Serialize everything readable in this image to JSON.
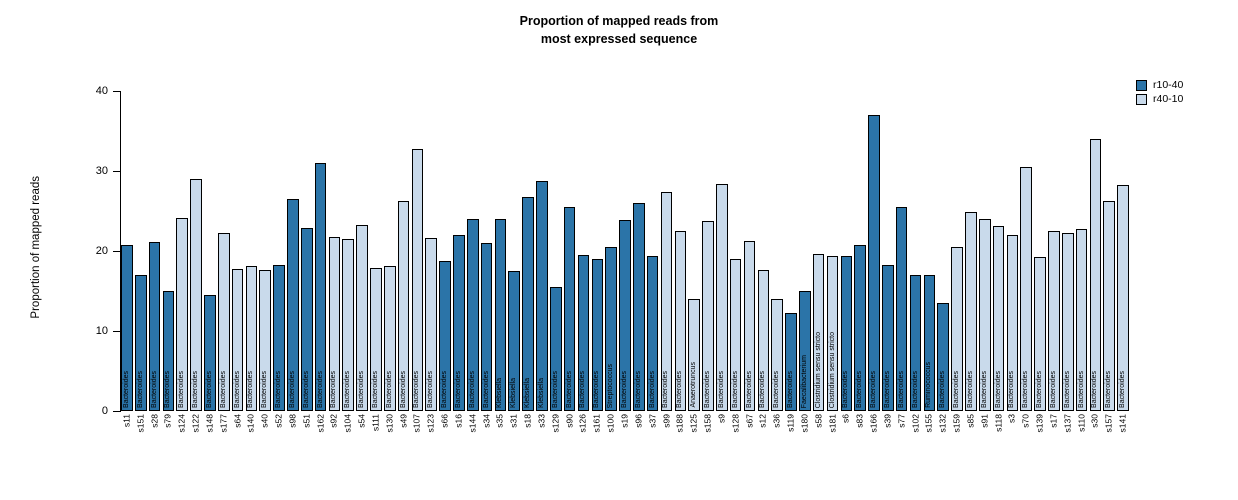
{
  "title": {
    "line1": "Proportion of mapped reads from",
    "line2": "most expressed sequence"
  },
  "y_axis": {
    "label": "Proportion of mapped reads",
    "ticks": [
      0,
      10,
      20,
      30,
      40
    ]
  },
  "legend": [
    {
      "label": "r10-40"
    },
    {
      "label": "r40-10"
    }
  ],
  "chart_data": {
    "type": "bar",
    "title": "Proportion of mapped reads from most expressed sequence",
    "xlabel": "",
    "ylabel": "Proportion of mapped reads",
    "ylim": [
      0,
      40
    ],
    "grid": false,
    "legend_position": "top-right",
    "groups": {
      "r10-40": "#2b74a8",
      "r40-10": "#c9daeb"
    },
    "bars": [
      {
        "sample": "s11",
        "value": 20.7,
        "group": "r10-40",
        "taxon": "Bacteroides"
      },
      {
        "sample": "s151",
        "value": 17.0,
        "group": "r10-40",
        "taxon": "Bacteroides"
      },
      {
        "sample": "s28",
        "value": 21.1,
        "group": "r10-40",
        "taxon": "Bacteroides"
      },
      {
        "sample": "s79",
        "value": 15.0,
        "group": "r10-40",
        "taxon": "Bacteroides"
      },
      {
        "sample": "s124",
        "value": 24.1,
        "group": "r40-10",
        "taxon": "Bacteroides"
      },
      {
        "sample": "s122",
        "value": 29.0,
        "group": "r40-10",
        "taxon": "Bacteroides"
      },
      {
        "sample": "s148",
        "value": 14.5,
        "group": "r10-40",
        "taxon": "Bacteroides"
      },
      {
        "sample": "s177",
        "value": 22.2,
        "group": "r40-10",
        "taxon": "Bacteroides"
      },
      {
        "sample": "s64",
        "value": 17.8,
        "group": "r40-10",
        "taxon": "Bacteroides"
      },
      {
        "sample": "s140",
        "value": 18.1,
        "group": "r40-10",
        "taxon": "Bacteroides"
      },
      {
        "sample": "s40",
        "value": 17.6,
        "group": "r40-10",
        "taxon": "Bacteroides"
      },
      {
        "sample": "s52",
        "value": 18.2,
        "group": "r10-40",
        "taxon": "Bacteroides"
      },
      {
        "sample": "s98",
        "value": 26.5,
        "group": "r10-40",
        "taxon": "Bacteroides"
      },
      {
        "sample": "s51",
        "value": 22.9,
        "group": "r10-40",
        "taxon": "Bacteroides"
      },
      {
        "sample": "s162",
        "value": 31.0,
        "group": "r10-40",
        "taxon": "Bacteroides"
      },
      {
        "sample": "s92",
        "value": 21.8,
        "group": "r40-10",
        "taxon": "Bacteroides"
      },
      {
        "sample": "s104",
        "value": 21.5,
        "group": "r40-10",
        "taxon": "Bacteroides"
      },
      {
        "sample": "s54",
        "value": 23.2,
        "group": "r40-10",
        "taxon": "Bacteroides"
      },
      {
        "sample": "s111",
        "value": 17.9,
        "group": "r40-10",
        "taxon": "Bacteroides"
      },
      {
        "sample": "s130",
        "value": 18.1,
        "group": "r40-10",
        "taxon": "Bacteroides"
      },
      {
        "sample": "s49",
        "value": 26.2,
        "group": "r40-10",
        "taxon": "Bacteroides"
      },
      {
        "sample": "s107",
        "value": 32.8,
        "group": "r40-10",
        "taxon": "Bacteroides"
      },
      {
        "sample": "s123",
        "value": 21.6,
        "group": "r40-10",
        "taxon": "Bacteroides"
      },
      {
        "sample": "s66",
        "value": 18.7,
        "group": "r10-40",
        "taxon": "Bacteroides"
      },
      {
        "sample": "s16",
        "value": 22.0,
        "group": "r10-40",
        "taxon": "Bacteroides"
      },
      {
        "sample": "s144",
        "value": 24.0,
        "group": "r10-40",
        "taxon": "Bacteroides"
      },
      {
        "sample": "s34",
        "value": 21.0,
        "group": "r10-40",
        "taxon": "Bacteroides"
      },
      {
        "sample": "s35",
        "value": 24.0,
        "group": "r10-40",
        "taxon": "Klebsiella"
      },
      {
        "sample": "s31",
        "value": 17.5,
        "group": "r10-40",
        "taxon": "Klebsiella"
      },
      {
        "sample": "s18",
        "value": 26.8,
        "group": "r10-40",
        "taxon": "Klebsiella"
      },
      {
        "sample": "s33",
        "value": 28.7,
        "group": "r10-40",
        "taxon": "Klebsiella"
      },
      {
        "sample": "s129",
        "value": 15.5,
        "group": "r10-40",
        "taxon": "Bacteroides"
      },
      {
        "sample": "s90",
        "value": 25.5,
        "group": "r10-40",
        "taxon": "Bacteroides"
      },
      {
        "sample": "s126",
        "value": 19.5,
        "group": "r10-40",
        "taxon": "Bacteroides"
      },
      {
        "sample": "s161",
        "value": 19.0,
        "group": "r10-40",
        "taxon": "Bacteroides"
      },
      {
        "sample": "s100",
        "value": 20.5,
        "group": "r10-40",
        "taxon": "Streptococcus"
      },
      {
        "sample": "s19",
        "value": 23.9,
        "group": "r10-40",
        "taxon": "Bacteroides"
      },
      {
        "sample": "s96",
        "value": 26.0,
        "group": "r10-40",
        "taxon": "Bacteroides"
      },
      {
        "sample": "s37",
        "value": 19.4,
        "group": "r10-40",
        "taxon": "Bacteroides"
      },
      {
        "sample": "s99",
        "value": 27.4,
        "group": "r40-10",
        "taxon": "Bacteroides"
      },
      {
        "sample": "s188",
        "value": 22.5,
        "group": "r40-10",
        "taxon": "Bacteroides"
      },
      {
        "sample": "s125",
        "value": 14.0,
        "group": "r40-10",
        "taxon": "Anaerotruncus"
      },
      {
        "sample": "s158",
        "value": 23.8,
        "group": "r40-10",
        "taxon": "Bacteroides"
      },
      {
        "sample": "s9",
        "value": 28.4,
        "group": "r40-10",
        "taxon": "Bacteroides"
      },
      {
        "sample": "s128",
        "value": 19.0,
        "group": "r40-10",
        "taxon": "Bacteroides"
      },
      {
        "sample": "s67",
        "value": 21.2,
        "group": "r40-10",
        "taxon": "Bacteroides"
      },
      {
        "sample": "s12",
        "value": 17.6,
        "group": "r40-10",
        "taxon": "Bacteroides"
      },
      {
        "sample": "s36",
        "value": 14.0,
        "group": "r40-10",
        "taxon": "Bacteroides"
      },
      {
        "sample": "s119",
        "value": 12.3,
        "group": "r10-40",
        "taxon": "Bacteroides"
      },
      {
        "sample": "s180",
        "value": 15.0,
        "group": "r10-40",
        "taxon": "Faecalibacterium"
      },
      {
        "sample": "s58",
        "value": 19.6,
        "group": "r40-10",
        "taxon": "Clostridium sensu stricto"
      },
      {
        "sample": "s181",
        "value": 19.4,
        "group": "r40-10",
        "taxon": "Clostridium sensu stricto"
      },
      {
        "sample": "s6",
        "value": 19.4,
        "group": "r10-40",
        "taxon": "Bacteroides"
      },
      {
        "sample": "s83",
        "value": 20.8,
        "group": "r10-40",
        "taxon": "Bacteroides"
      },
      {
        "sample": "s166",
        "value": 37.0,
        "group": "r10-40",
        "taxon": "Bacteroides"
      },
      {
        "sample": "s39",
        "value": 18.3,
        "group": "r10-40",
        "taxon": "Bacteroides"
      },
      {
        "sample": "s77",
        "value": 25.5,
        "group": "r10-40",
        "taxon": "Bacteroides"
      },
      {
        "sample": "s102",
        "value": 17.0,
        "group": "r10-40",
        "taxon": "Bacteroides"
      },
      {
        "sample": "s155",
        "value": 17.0,
        "group": "r10-40",
        "taxon": "Ruminococcus"
      },
      {
        "sample": "s132",
        "value": 13.5,
        "group": "r10-40",
        "taxon": "Bacteroides"
      },
      {
        "sample": "s159",
        "value": 20.5,
        "group": "r40-10",
        "taxon": "Bacteroides"
      },
      {
        "sample": "s85",
        "value": 24.9,
        "group": "r40-10",
        "taxon": "Bacteroides"
      },
      {
        "sample": "s91",
        "value": 24.0,
        "group": "r40-10",
        "taxon": "Bacteroides"
      },
      {
        "sample": "s118",
        "value": 23.1,
        "group": "r40-10",
        "taxon": "Bacteroides"
      },
      {
        "sample": "s3",
        "value": 22.0,
        "group": "r40-10",
        "taxon": "Bacteroides"
      },
      {
        "sample": "s70",
        "value": 30.5,
        "group": "r40-10",
        "taxon": "Bacteroides"
      },
      {
        "sample": "s139",
        "value": 19.2,
        "group": "r40-10",
        "taxon": "Bacteroides"
      },
      {
        "sample": "s17",
        "value": 22.5,
        "group": "r40-10",
        "taxon": "Bacteroides"
      },
      {
        "sample": "s137",
        "value": 22.3,
        "group": "r40-10",
        "taxon": "Bacteroides"
      },
      {
        "sample": "s110",
        "value": 22.7,
        "group": "r40-10",
        "taxon": "Bacteroides"
      },
      {
        "sample": "s30",
        "value": 34.0,
        "group": "r40-10",
        "taxon": "Bacteroides"
      },
      {
        "sample": "s157",
        "value": 26.3,
        "group": "r40-10",
        "taxon": "Bacteroides"
      },
      {
        "sample": "s141",
        "value": 28.3,
        "group": "r40-10",
        "taxon": "Bacteroides"
      }
    ]
  }
}
